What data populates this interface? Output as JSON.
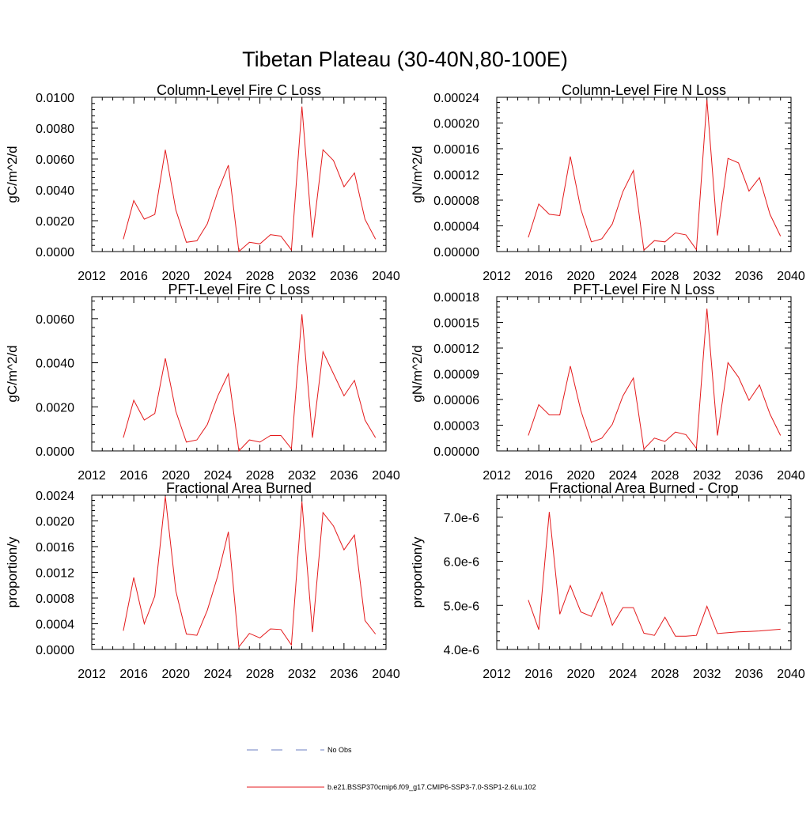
{
  "page": {
    "title": "Tibetan Plateau (30-40N,80-100E)"
  },
  "chart_data": [
    {
      "type": "line",
      "title": "Column-Level Fire C Loss",
      "ylabel": "gC/m^2/d",
      "xlim": [
        2012,
        2040
      ],
      "ylim": [
        0,
        0.01
      ],
      "xticks": [
        2012,
        2016,
        2020,
        2024,
        2028,
        2032,
        2036,
        2040
      ],
      "xtick_labels": [
        "2012",
        "2016",
        "2020",
        "2024",
        "2028",
        "2032",
        "2036",
        "2040"
      ],
      "yticks": [
        0,
        0.002,
        0.004,
        0.006,
        0.008,
        0.01
      ],
      "ytick_labels": [
        "0.0000",
        "0.0020",
        "0.0040",
        "0.0060",
        "0.0080",
        "0.0100"
      ],
      "x": [
        2015,
        2016,
        2017,
        2018,
        2019,
        2020,
        2021,
        2022,
        2023,
        2024,
        2025,
        2026,
        2027,
        2028,
        2029,
        2030,
        2031,
        2032,
        2033,
        2034,
        2035,
        2036,
        2037,
        2038,
        2039
      ],
      "series": [
        {
          "color": "#e41a1c",
          "values": [
            0.0008,
            0.0033,
            0.0021,
            0.0024,
            0.0066,
            0.0027,
            0.0006,
            0.0007,
            0.0018,
            0.0039,
            0.0056,
            0.0,
            0.0006,
            0.0005,
            0.0011,
            0.001,
            0.0001,
            0.0094,
            0.0009,
            0.0066,
            0.0059,
            0.0042,
            0.0051,
            0.0021,
            0.0008
          ]
        }
      ]
    },
    {
      "type": "line",
      "title": "Column-Level Fire N Loss",
      "ylabel": "gN/m^2/d",
      "xlim": [
        2012,
        2040
      ],
      "ylim": [
        0,
        0.00024
      ],
      "xticks": [
        2012,
        2016,
        2020,
        2024,
        2028,
        2032,
        2036,
        2040
      ],
      "xtick_labels": [
        "2012",
        "2016",
        "2020",
        "2024",
        "2028",
        "2032",
        "2036",
        "2040"
      ],
      "yticks": [
        0,
        4e-05,
        8e-05,
        0.00012,
        0.00016,
        0.0002,
        0.00024
      ],
      "ytick_labels": [
        "0.00000",
        "0.00004",
        "0.00008",
        "0.00012",
        "0.00016",
        "0.00020",
        "0.00024"
      ],
      "x": [
        2015,
        2016,
        2017,
        2018,
        2019,
        2020,
        2021,
        2022,
        2023,
        2024,
        2025,
        2026,
        2027,
        2028,
        2029,
        2030,
        2031,
        2032,
        2033,
        2034,
        2035,
        2036,
        2037,
        2038,
        2039
      ],
      "series": [
        {
          "color": "#e41a1c",
          "values": [
            2.2e-05,
            7.4e-05,
            5.8e-05,
            5.6e-05,
            0.000148,
            6.6e-05,
            1.5e-05,
            2e-05,
            4.3e-05,
            9.3e-05,
            0.000126,
            2e-06,
            1.7e-05,
            1.5e-05,
            2.9e-05,
            2.6e-05,
            3e-06,
            0.000236,
            2.5e-05,
            0.000145,
            0.000138,
            9.4e-05,
            0.000115,
            5.8e-05,
            2.4e-05
          ]
        }
      ]
    },
    {
      "type": "line",
      "title": "PFT-Level Fire C Loss",
      "ylabel": "gC/m^2/d",
      "xlim": [
        2012,
        2040
      ],
      "ylim": [
        0,
        0.007
      ],
      "xticks": [
        2012,
        2016,
        2020,
        2024,
        2028,
        2032,
        2036,
        2040
      ],
      "xtick_labels": [
        "2012",
        "2016",
        "2020",
        "2024",
        "2028",
        "2032",
        "2036",
        "2040"
      ],
      "yticks": [
        0,
        0.002,
        0.004,
        0.006
      ],
      "ytick_labels": [
        "0.0000",
        "0.0020",
        "0.0040",
        "0.0060"
      ],
      "x": [
        2015,
        2016,
        2017,
        2018,
        2019,
        2020,
        2021,
        2022,
        2023,
        2024,
        2025,
        2026,
        2027,
        2028,
        2029,
        2030,
        2031,
        2032,
        2033,
        2034,
        2035,
        2036,
        2037,
        2038,
        2039
      ],
      "series": [
        {
          "color": "#e41a1c",
          "values": [
            0.0006,
            0.0023,
            0.0014,
            0.0017,
            0.0042,
            0.0018,
            0.0004,
            0.0005,
            0.0012,
            0.0025,
            0.0035,
            0.0,
            0.0005,
            0.0004,
            0.0007,
            0.0007,
            0.0001,
            0.0062,
            0.0006,
            0.0045,
            0.0035,
            0.0025,
            0.0032,
            0.0014,
            0.0006
          ]
        }
      ]
    },
    {
      "type": "line",
      "title": "PFT-Level Fire N Loss",
      "ylabel": "gN/m^2/d",
      "xlim": [
        2012,
        2040
      ],
      "ylim": [
        0,
        0.00018
      ],
      "xticks": [
        2012,
        2016,
        2020,
        2024,
        2028,
        2032,
        2036,
        2040
      ],
      "xtick_labels": [
        "2012",
        "2016",
        "2020",
        "2024",
        "2028",
        "2032",
        "2036",
        "2040"
      ],
      "yticks": [
        0,
        3e-05,
        6e-05,
        9e-05,
        0.00012,
        0.00015,
        0.00018
      ],
      "ytick_labels": [
        "0.00000",
        "0.00003",
        "0.00006",
        "0.00009",
        "0.00012",
        "0.00015",
        "0.00018"
      ],
      "x": [
        2015,
        2016,
        2017,
        2018,
        2019,
        2020,
        2021,
        2022,
        2023,
        2024,
        2025,
        2026,
        2027,
        2028,
        2029,
        2030,
        2031,
        2032,
        2033,
        2034,
        2035,
        2036,
        2037,
        2038,
        2039
      ],
      "series": [
        {
          "color": "#e41a1c",
          "values": [
            1.8e-05,
            5.4e-05,
            4.2e-05,
            4.2e-05,
            9.9e-05,
            4.7e-05,
            1e-05,
            1.5e-05,
            3.1e-05,
            6.4e-05,
            8.5e-05,
            2e-06,
            1.5e-05,
            1.1e-05,
            2.2e-05,
            1.9e-05,
            3e-06,
            0.000166,
            1.8e-05,
            0.000103,
            8.6e-05,
            5.9e-05,
            7.7e-05,
            4.3e-05,
            1.8e-05
          ]
        }
      ]
    },
    {
      "type": "line",
      "title": "Fractional Area Burned",
      "ylabel": "proportion/y",
      "xlim": [
        2012,
        2040
      ],
      "ylim": [
        0,
        0.0024
      ],
      "xticks": [
        2012,
        2016,
        2020,
        2024,
        2028,
        2032,
        2036,
        2040
      ],
      "xtick_labels": [
        "2012",
        "2016",
        "2020",
        "2024",
        "2028",
        "2032",
        "2036",
        "2040"
      ],
      "yticks": [
        0,
        0.0004,
        0.0008,
        0.0012,
        0.0016,
        0.002,
        0.0024
      ],
      "ytick_labels": [
        "0.0000",
        "0.0004",
        "0.0008",
        "0.0012",
        "0.0016",
        "0.0020",
        "0.0024"
      ],
      "x": [
        2015,
        2016,
        2017,
        2018,
        2019,
        2020,
        2021,
        2022,
        2023,
        2024,
        2025,
        2026,
        2027,
        2028,
        2029,
        2030,
        2031,
        2032,
        2033,
        2034,
        2035,
        2036,
        2037,
        2038,
        2039
      ],
      "series": [
        {
          "color": "#e41a1c",
          "values": [
            0.00029,
            0.00112,
            0.0004,
            0.00083,
            0.00238,
            0.00091,
            0.00024,
            0.00022,
            0.00061,
            0.00115,
            0.00183,
            4e-05,
            0.00025,
            0.00018,
            0.00032,
            0.00031,
            7e-05,
            0.0023,
            0.00027,
            0.00213,
            0.00192,
            0.00155,
            0.00178,
            0.00045,
            0.00024
          ]
        }
      ]
    },
    {
      "type": "line",
      "title": "Fractional Area Burned - Crop",
      "ylabel": "proportion/y",
      "xlim": [
        2012,
        2040
      ],
      "ylim": [
        4e-06,
        7.5e-06
      ],
      "xticks": [
        2012,
        2016,
        2020,
        2024,
        2028,
        2032,
        2036,
        2040
      ],
      "xtick_labels": [
        "2012",
        "2016",
        "2020",
        "2024",
        "2028",
        "2032",
        "2036",
        "2040"
      ],
      "yticks": [
        4e-06,
        5e-06,
        6e-06,
        7e-06
      ],
      "ytick_labels": [
        "4.0e-6",
        "5.0e-6",
        "6.0e-6",
        "7.0e-6"
      ],
      "x": [
        2015,
        2016,
        2017,
        2018,
        2019,
        2020,
        2021,
        2022,
        2023,
        2024,
        2025,
        2026,
        2027,
        2028,
        2029,
        2030,
        2031,
        2032,
        2033,
        2034,
        2035,
        2036,
        2037,
        2038,
        2039
      ],
      "series": [
        {
          "color": "#e41a1c",
          "values": [
            5.12e-06,
            4.45e-06,
            7.12e-06,
            4.8e-06,
            5.45e-06,
            4.85e-06,
            4.75e-06,
            5.3e-06,
            4.55e-06,
            4.95e-06,
            4.95e-06,
            4.37e-06,
            4.32e-06,
            4.73e-06,
            4.3e-06,
            4.3e-06,
            4.32e-06,
            4.98e-06,
            4.36e-06,
            4.38e-06,
            4.4e-06,
            4.41e-06,
            4.42e-06,
            4.44e-06,
            4.46e-06
          ]
        }
      ]
    }
  ],
  "legend": {
    "entries": [
      {
        "label": "No Obs",
        "color": "#6e7fc0",
        "dash": "dashed"
      },
      {
        "label": "b.e21.BSSP370cmip6.f09_g17.CMIP6-SSP3-7.0-SSP1-2.6Lu.102",
        "color": "#e41a1c",
        "dash": "solid"
      }
    ]
  }
}
